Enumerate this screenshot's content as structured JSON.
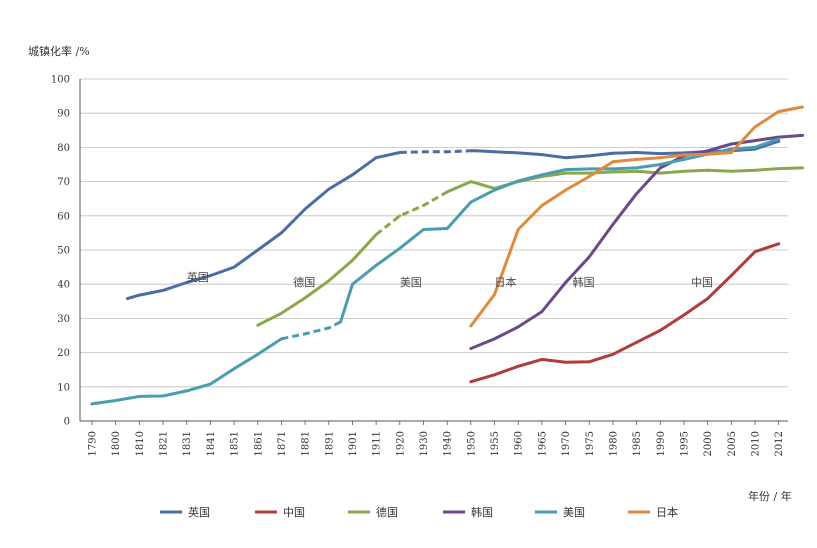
{
  "chart_data": {
    "type": "line",
    "title": "",
    "ylabel": "城镇化率 /%",
    "xlabel": "年份 / 年",
    "ylim": [
      0,
      100
    ],
    "yticks": [
      0,
      10,
      20,
      30,
      40,
      50,
      60,
      70,
      80,
      90,
      100
    ],
    "grid": true,
    "legend_position": "bottom",
    "categories": [
      "1790",
      "1800",
      "1810",
      "1821",
      "1831",
      "1841",
      "1851",
      "1861",
      "1871",
      "1881",
      "1891",
      "1901",
      "1911",
      "1920",
      "1930",
      "1940",
      "1950",
      "1955",
      "1960",
      "1965",
      "1970",
      "1975",
      "1980",
      "1985",
      "1990",
      "1995",
      "2000",
      "2005",
      "2010",
      "2012"
    ],
    "series": [
      {
        "name": "英国",
        "color": "#4a6da8",
        "annotation": "英国",
        "points": [
          [
            1.5,
            35.8
          ],
          [
            2,
            36.8
          ],
          [
            3,
            38.2
          ],
          [
            4,
            40.5
          ],
          [
            5,
            42.5
          ],
          [
            6,
            45
          ],
          [
            7,
            50
          ],
          [
            8,
            55
          ],
          [
            9,
            62
          ],
          [
            10,
            67.8
          ],
          [
            11,
            72
          ],
          [
            12,
            77
          ],
          [
            13,
            78.5
          ],
          [
            14,
            78.7
          ],
          [
            15,
            78.7
          ],
          [
            16,
            79
          ],
          [
            16.2,
            79
          ],
          [
            17,
            78.7
          ],
          [
            18,
            78.4
          ],
          [
            19,
            77.9
          ],
          [
            20,
            77
          ],
          [
            21,
            77.5
          ],
          [
            22,
            78.3
          ],
          [
            23,
            78.5
          ],
          [
            24,
            78.2
          ],
          [
            25,
            78.4
          ],
          [
            26,
            78.8
          ],
          [
            27,
            79
          ],
          [
            28,
            79.5
          ],
          [
            29,
            81.8
          ]
        ],
        "dashed_segments": [
          [
            13,
            16
          ]
        ]
      },
      {
        "name": "中国",
        "color": "#b03c3c",
        "annotation": "中国",
        "points": [
          [
            16,
            11.5
          ],
          [
            17,
            13.5
          ],
          [
            18,
            16
          ],
          [
            19,
            18
          ],
          [
            20,
            17.2
          ],
          [
            21,
            17.3
          ],
          [
            22,
            19.5
          ],
          [
            23,
            23
          ],
          [
            24,
            26.5
          ],
          [
            25,
            31
          ],
          [
            26,
            35.8
          ],
          [
            27,
            42.5
          ],
          [
            28,
            49.5
          ],
          [
            29,
            51.8
          ]
        ],
        "dashed_segments": []
      },
      {
        "name": "德国",
        "color": "#8aa84a",
        "annotation": "德国",
        "points": [
          [
            7,
            28
          ],
          [
            8,
            31.5
          ],
          [
            9,
            36
          ],
          [
            10,
            41
          ],
          [
            11,
            47
          ],
          [
            12,
            54.5
          ],
          [
            13,
            60
          ],
          [
            14,
            63
          ],
          [
            15,
            67
          ],
          [
            16,
            70
          ],
          [
            17,
            68
          ],
          [
            18,
            70
          ],
          [
            19,
            71.5
          ],
          [
            20,
            72.5
          ],
          [
            21,
            72.5
          ],
          [
            22,
            72.8
          ],
          [
            23,
            73
          ],
          [
            24,
            72.5
          ],
          [
            25,
            73
          ],
          [
            26,
            73.3
          ],
          [
            27,
            73
          ],
          [
            28,
            73.3
          ],
          [
            29,
            73.8
          ],
          [
            30,
            74
          ]
        ],
        "dashed_segments": [
          [
            12,
            15
          ]
        ]
      },
      {
        "name": "韩国",
        "color": "#6a4a8a",
        "annotation": "韩国",
        "points": [
          [
            16,
            21.2
          ],
          [
            17,
            24
          ],
          [
            18,
            27.5
          ],
          [
            19,
            32
          ],
          [
            20,
            40.5
          ],
          [
            21,
            48
          ],
          [
            22,
            57.5
          ],
          [
            23,
            66.5
          ],
          [
            24,
            74
          ],
          [
            25,
            77.5
          ],
          [
            26,
            79
          ],
          [
            27,
            81
          ],
          [
            28,
            82
          ],
          [
            29,
            83
          ],
          [
            30,
            83.5
          ]
        ],
        "dashed_segments": []
      },
      {
        "name": "美国",
        "color": "#4a9cb0",
        "annotation": "美国",
        "points": [
          [
            0,
            5
          ],
          [
            1,
            6
          ],
          [
            2,
            7.2
          ],
          [
            3,
            7.3
          ],
          [
            4,
            8.8
          ],
          [
            5,
            10.8
          ],
          [
            6,
            15.3
          ],
          [
            7,
            19.5
          ],
          [
            8,
            24
          ],
          [
            9,
            25.5
          ],
          [
            10,
            27.2
          ],
          [
            10.5,
            29
          ],
          [
            11,
            40
          ],
          [
            12,
            45.5
          ],
          [
            13,
            50.5
          ],
          [
            14,
            56
          ],
          [
            15,
            56.3
          ],
          [
            16,
            64
          ],
          [
            17,
            67.5
          ],
          [
            18,
            70.2
          ],
          [
            19,
            72
          ],
          [
            20,
            73.5
          ],
          [
            21,
            73.7
          ],
          [
            22,
            73.7
          ],
          [
            23,
            74
          ],
          [
            24,
            75
          ],
          [
            25,
            76.5
          ],
          [
            26,
            78
          ],
          [
            27,
            79.5
          ],
          [
            28,
            80
          ],
          [
            29,
            82.5
          ]
        ],
        "dashed_segments": [
          [
            8,
            10.5
          ]
        ]
      },
      {
        "name": "日本",
        "color": "#e08a3c",
        "annotation": "日本",
        "points": [
          [
            16,
            27.8
          ],
          [
            17,
            37
          ],
          [
            18,
            56
          ],
          [
            19,
            63
          ],
          [
            20,
            67.5
          ],
          [
            21,
            71.5
          ],
          [
            22,
            75.8
          ],
          [
            23,
            76.5
          ],
          [
            24,
            77
          ],
          [
            25,
            77.8
          ],
          [
            26,
            78
          ],
          [
            27,
            78.5
          ],
          [
            28,
            86
          ],
          [
            29,
            90.5
          ],
          [
            30,
            91.8
          ]
        ],
        "dashed_segments": []
      }
    ],
    "annotations": [
      {
        "text": "英国",
        "x": 4,
        "y": 41
      },
      {
        "text": "德国",
        "x": 8.5,
        "y": 39.5
      },
      {
        "text": "美国",
        "x": 13,
        "y": 39.5
      },
      {
        "text": "日本",
        "x": 17,
        "y": 39.5
      },
      {
        "text": "韩国",
        "x": 20.3,
        "y": 39.5
      },
      {
        "text": "中国",
        "x": 25.3,
        "y": 39.5
      }
    ]
  }
}
